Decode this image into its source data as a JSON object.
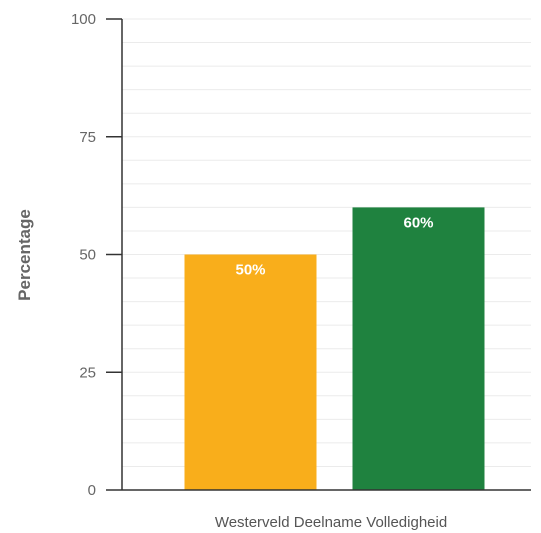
{
  "chart_data": {
    "type": "bar",
    "title": "",
    "xlabel": "",
    "ylabel": "Percentage",
    "categories": [
      "Westerveld Deelname Volledigheid"
    ],
    "series": [
      {
        "values": [
          50
        ],
        "color": "#f9ae1b",
        "data_label": "50%"
      },
      {
        "values": [
          60
        ],
        "color": "#1f823f",
        "data_label": "60%"
      }
    ],
    "ylim": [
      0,
      100
    ],
    "yticks": [
      0,
      25,
      50,
      75,
      100
    ],
    "ytick_labels": [
      "0",
      "25",
      "50",
      "75",
      "100"
    ],
    "grid": true,
    "legend": "none"
  }
}
